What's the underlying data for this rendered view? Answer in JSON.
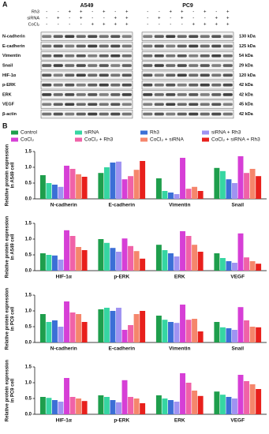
{
  "panel_a": {
    "label": "A",
    "cell_lines": [
      "A549",
      "PC9"
    ],
    "conditions": [
      {
        "label": "Rh3",
        "signs": [
          "-",
          "-",
          "+",
          "+",
          "-",
          "+",
          "-",
          "+"
        ]
      },
      {
        "label": "siRNA",
        "signs": [
          "-",
          "+",
          "-",
          "+",
          "-",
          "-",
          "+",
          "+"
        ]
      },
      {
        "label": "CoCl₂",
        "signs": [
          "-",
          "-",
          "-",
          "-",
          "+",
          "+",
          "+",
          "+"
        ]
      }
    ],
    "blots": [
      {
        "protein": "N-cadherin",
        "size": "130 kDa"
      },
      {
        "protein": "E-cadherin",
        "size": "125 kDa"
      },
      {
        "protein": "Vimentin",
        "size": "54 kDa"
      },
      {
        "protein": "Snail",
        "size": "29 kDa"
      },
      {
        "protein": "HIF-1α",
        "size": "120 kDa"
      },
      {
        "protein": "p-ERK",
        "size": "42 kDa"
      },
      {
        "protein": "ERK",
        "size": "42 kDa"
      },
      {
        "protein": "VEGF",
        "size": "45 kDa"
      },
      {
        "protein": "β-actin",
        "size": "42 kDa"
      }
    ]
  },
  "panel_b_label": "B",
  "chart_data": [
    {
      "type": "bar",
      "ylabel": [
        "Relative protein expression",
        "in A549 cell"
      ],
      "categories": [
        "N-cadherin",
        "E-cadherin",
        "Vimentin",
        "Snail"
      ],
      "ylim": [
        0,
        1.5
      ],
      "yticks": [
        {
          "value": 0,
          "label": "0.0"
        },
        {
          "value": 0.5,
          "label": "0.5"
        },
        {
          "value": 1,
          "label": "1.0"
        },
        {
          "value": 1.5,
          "label": "1.5"
        }
      ],
      "series": [
        {
          "name": "Control",
          "color": "#1e9e4c",
          "values": [
            0.75,
            0.82,
            0.65,
            0.98
          ]
        },
        {
          "name": "siRNA",
          "color": "#36d6a2",
          "values": [
            0.5,
            1.0,
            0.25,
            0.88
          ]
        },
        {
          "name": "Rh3",
          "color": "#3b6fd6",
          "values": [
            0.45,
            1.15,
            0.2,
            0.62
          ]
        },
        {
          "name": "siRNA + Rh3",
          "color": "#9f93f2",
          "values": [
            0.38,
            1.18,
            0.15,
            0.5
          ]
        },
        {
          "name": "CoCl₂",
          "color": "#d63fd6",
          "values": [
            1.05,
            0.62,
            1.3,
            1.35
          ]
        },
        {
          "name": "CoCl₂ + Rh3",
          "color": "#f062a8",
          "values": [
            0.95,
            0.72,
            0.32,
            0.82
          ]
        },
        {
          "name": "CoCl₂ + siRNA",
          "color": "#f5866c",
          "values": [
            0.78,
            0.92,
            0.38,
            0.95
          ]
        },
        {
          "name": "CoCl₂ + siRNA + Rh3",
          "color": "#e8201c",
          "values": [
            0.7,
            1.2,
            0.25,
            0.72
          ]
        }
      ]
    },
    {
      "type": "bar",
      "ylabel": [
        "Relative protein expression",
        "in A549 cell"
      ],
      "categories": [
        "HIF-1α",
        "p-ERK",
        "ERK",
        "VEGF"
      ],
      "ylim": [
        0,
        1.5
      ],
      "yticks": [
        {
          "value": 0,
          "label": "0.0"
        },
        {
          "value": 0.5,
          "label": "0.5"
        },
        {
          "value": 1,
          "label": "1.0"
        },
        {
          "value": 1.5,
          "label": "1.5"
        }
      ],
      "series": [
        {
          "name": "Control",
          "color": "#1e9e4c",
          "values": [
            0.55,
            1.0,
            0.82,
            0.55
          ]
        },
        {
          "name": "siRNA",
          "color": "#36d6a2",
          "values": [
            0.5,
            0.88,
            0.65,
            0.4
          ]
        },
        {
          "name": "Rh3",
          "color": "#3b6fd6",
          "values": [
            0.48,
            0.72,
            0.55,
            0.3
          ]
        },
        {
          "name": "siRNA + Rh3",
          "color": "#9f93f2",
          "values": [
            0.35,
            0.6,
            0.45,
            0.25
          ]
        },
        {
          "name": "CoCl₂",
          "color": "#d63fd6",
          "values": [
            1.28,
            1.02,
            1.25,
            1.18
          ]
        },
        {
          "name": "CoCl₂ + Rh3",
          "color": "#f062a8",
          "values": [
            1.1,
            0.78,
            1.1,
            0.42
          ]
        },
        {
          "name": "CoCl₂ + siRNA",
          "color": "#f5866c",
          "values": [
            0.75,
            0.62,
            0.82,
            0.3
          ]
        },
        {
          "name": "CoCl₂ + siRNA + Rh3",
          "color": "#e8201c",
          "values": [
            0.65,
            0.38,
            0.6,
            0.22
          ]
        }
      ]
    },
    {
      "type": "bar",
      "ylabel": [
        "Relative protein expression",
        "in PC9 cell"
      ],
      "categories": [
        "N-cadherin",
        "E-cadherin",
        "Vimentin",
        "Snail"
      ],
      "ylim": [
        0,
        1.5
      ],
      "yticks": [
        {
          "value": 0,
          "label": "0.0"
        },
        {
          "value": 0.5,
          "label": "0.5"
        },
        {
          "value": 1,
          "label": "1.0"
        },
        {
          "value": 1.5,
          "label": "1.5"
        }
      ],
      "series": [
        {
          "name": "Control",
          "color": "#1e9e4c",
          "values": [
            0.9,
            1.05,
            0.85,
            0.65
          ]
        },
        {
          "name": "siRNA",
          "color": "#36d6a2",
          "values": [
            0.65,
            1.1,
            0.72,
            0.48
          ]
        },
        {
          "name": "Rh3",
          "color": "#3b6fd6",
          "values": [
            0.7,
            1.0,
            0.65,
            0.45
          ]
        },
        {
          "name": "siRNA + Rh3",
          "color": "#9f93f2",
          "values": [
            0.5,
            1.1,
            0.62,
            0.4
          ]
        },
        {
          "name": "CoCl₂",
          "color": "#d63fd6",
          "values": [
            1.3,
            0.4,
            1.2,
            1.12
          ]
        },
        {
          "name": "CoCl₂ + Rh3",
          "color": "#f062a8",
          "values": [
            0.95,
            0.55,
            0.72,
            0.7
          ]
        },
        {
          "name": "CoCl₂ + siRNA",
          "color": "#f5866c",
          "values": [
            0.9,
            0.9,
            0.75,
            0.5
          ]
        },
        {
          "name": "CoCl₂ + siRNA + Rh3",
          "color": "#e8201c",
          "values": [
            0.65,
            1.0,
            0.35,
            0.48
          ]
        }
      ]
    },
    {
      "type": "bar",
      "ylabel": [
        "Relative protein expression",
        "in PC9 cell"
      ],
      "categories": [
        "HIF-1α",
        "p-ERK",
        "ERK",
        "VEGF"
      ],
      "ylim": [
        0,
        1.5
      ],
      "yticks": [
        {
          "value": 0,
          "label": "0.0"
        },
        {
          "value": 0.5,
          "label": "0.5"
        },
        {
          "value": 1,
          "label": "1.0"
        },
        {
          "value": 1.5,
          "label": "1.5"
        }
      ],
      "series": [
        {
          "name": "Control",
          "color": "#1e9e4c",
          "values": [
            0.55,
            0.6,
            0.6,
            0.72
          ]
        },
        {
          "name": "siRNA",
          "color": "#36d6a2",
          "values": [
            0.52,
            0.55,
            0.5,
            0.62
          ]
        },
        {
          "name": "Rh3",
          "color": "#3b6fd6",
          "values": [
            0.45,
            0.45,
            0.45,
            0.55
          ]
        },
        {
          "name": "siRNA + Rh3",
          "color": "#9f93f2",
          "values": [
            0.4,
            0.38,
            0.4,
            0.5
          ]
        },
        {
          "name": "CoCl₂",
          "color": "#d63fd6",
          "values": [
            1.15,
            1.08,
            1.3,
            1.25
          ]
        },
        {
          "name": "CoCl₂ + Rh3",
          "color": "#f062a8",
          "values": [
            0.55,
            0.55,
            1.0,
            1.05
          ]
        },
        {
          "name": "CoCl₂ + siRNA",
          "color": "#f5866c",
          "values": [
            0.5,
            0.5,
            0.75,
            0.95
          ]
        },
        {
          "name": "CoCl₂ + siRNA + Rh3",
          "color": "#e8201c",
          "values": [
            0.42,
            0.35,
            0.58,
            0.8
          ]
        }
      ]
    }
  ]
}
